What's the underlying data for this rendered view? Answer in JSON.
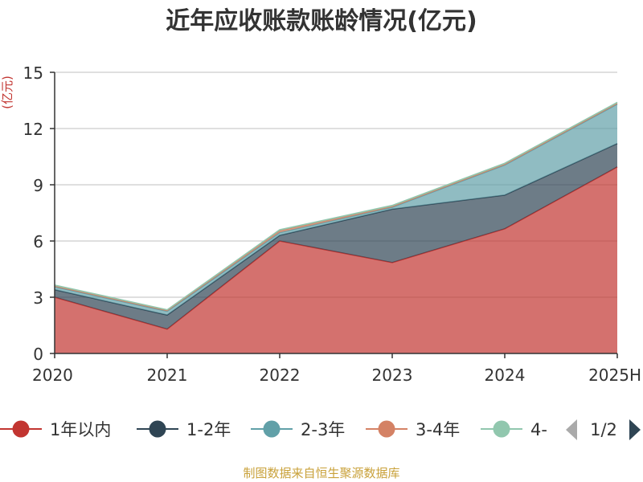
{
  "chart_data": {
    "type": "area",
    "stacked": true,
    "title": "近年应收账款账龄情况(亿元)",
    "ylabel": "(亿元)",
    "categories": [
      "2020",
      "2021",
      "2022",
      "2023",
      "2024",
      "2025H"
    ],
    "ylim": [
      0,
      15
    ],
    "yticks": [
      0,
      3,
      6,
      9,
      12,
      15
    ],
    "grid": true,
    "legend_position": "bottom",
    "series": [
      {
        "name": "1年以内",
        "color": "#c23531",
        "values": [
          3.0,
          1.3,
          6.0,
          4.85,
          6.65,
          9.95
        ]
      },
      {
        "name": "1-2年",
        "color": "#2f4554",
        "values": [
          0.4,
          0.75,
          0.3,
          2.85,
          1.8,
          1.25
        ]
      },
      {
        "name": "2-3年",
        "color": "#61a0a8",
        "values": [
          0.15,
          0.2,
          0.15,
          0.1,
          1.6,
          2.1
        ]
      },
      {
        "name": "3-4年",
        "color": "#d48265",
        "values": [
          0.05,
          0.05,
          0.1,
          0.05,
          0.05,
          0.05
        ]
      },
      {
        "name": "4-",
        "color": "#91c7ae",
        "values": [
          0.05,
          0.03,
          0.05,
          0.05,
          0.05,
          0.05
        ]
      }
    ]
  },
  "legend": {
    "page": "1/2"
  },
  "footer": {
    "source": "制图数据来自恒生聚源数据库"
  }
}
